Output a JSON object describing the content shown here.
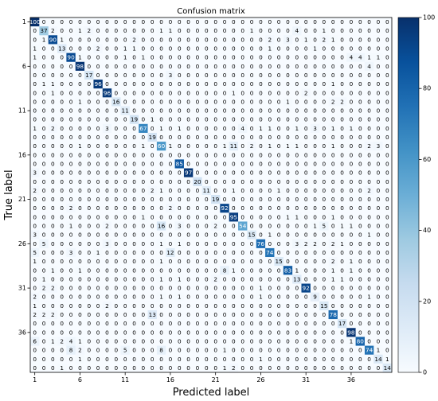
{
  "chart_data": {
    "type": "heatmap",
    "title": "Confusion matrix",
    "xlabel": "Predicted label",
    "ylabel": "True label",
    "x_tick_labels": [
      "1",
      "6",
      "11",
      "16",
      "21",
      "26",
      "31",
      "36"
    ],
    "y_tick_labels": [
      "1",
      "6",
      "11",
      "16",
      "21",
      "26",
      "31",
      "36"
    ],
    "colorbar": {
      "ticks": [
        "0",
        "20",
        "40",
        "60",
        "80",
        "100"
      ],
      "min": 0,
      "max": 100
    },
    "colormap": [
      "#f7fbff",
      "#deebf7",
      "#c6dbef",
      "#9ecae1",
      "#6baed6",
      "#4292c6",
      "#2171b5",
      "#08519c",
      "#08306b"
    ],
    "matrix": [
      "100 0 0 0 0 0 0 0 0 0 0 0 0 0 0 0 0 0 0 0 0 0 0 0 0 0 0 0 0 0 0 0 0 0 0 0 0 0 0 0",
      "0 37 2 0 0 1 2 0 0 0 0 0 0 0 1 1 0 0 0 0 0 0 0 0 1 0 0 0 0 4 0 0 1 0 0 0 0 0 0 0",
      "0 1 90 1 0 0 0 0 0 0 0 2 0 0 0 0 0 0 0 0 0 0 0 0 0 0 2 0 3 0 1 0 2 1 0 0 0 0 0 0",
      "1 0 0 13 0 0 0 2 0 0 1 1 0 0 0 0 0 0 0 0 0 0 0 0 0 0 1 0 0 0 0 1 0 0 0 0 0 0 0 0",
      "1 0 0 0 90 1 0 0 0 0 1 0 1 0 0 0 0 0 0 0 0 0 0 0 0 0 0 0 0 0 0 0 0 0 0 4 4 1 1 0",
      "0 0 0 0 0 98 0 0 0 0 0 0 0 0 0 0 0 0 0 0 0 0 0 0 0 0 0 0 0 0 0 0 0 0 0 0 0 4 0 0",
      "0 0 0 0 0 0 17 0 0 0 0 0 0 0 0 3 0 0 0 0 0 0 0 0 0 0 0 0 0 0 0 0 0 0 0 0 0 0 0 0",
      "0 1 1 0 0 0 0 96 0 0 0 0 0 0 0 0 0 0 0 0 0 0 0 0 0 0 0 0 0 0 0 0 0 1 0 0 0 0 0 0",
      "0 0 1 0 0 0 0 0 96 0 0 0 0 0 0 0 0 0 0 0 0 0 1 0 0 0 0 0 0 0 2 0 0 0 0 0 0 0 0 0",
      "0 0 0 0 0 1 0 0 0 16 0 0 0 0 0 0 0 0 0 0 0 0 0 0 0 0 0 0 1 0 0 0 0 2 2 0 0 0 0 0",
      "0 0 0 0 0 0 0 0 0 0 11 0 0 0 0 0 0 0 0 0 0 0 0 0 0 0 0 0 0 0 0 0 0 0 0 0 0 0 0 0",
      "0 0 0 0 0 0 0 0 0 0 0 19 0 1 0 0 0 0 0 0 0 0 0 0 0 0 0 0 0 0 0 0 0 0 0 0 0 0 0 0",
      "1 0 2 0 0 0 0 0 3 0 0 0 67 0 1 0 1 0 0 0 0 0 0 4 0 1 1 0 0 1 0 3 0 1 0 1 0 0 0 0",
      "0 0 0 0 0 0 0 0 0 0 0 0 0 19 0 0 0 0 0 0 0 0 0 0 0 0 0 0 0 0 0 0 0 0 0 0 0 0 0 0",
      "0 0 0 0 0 1 0 0 0 0 0 0 1 0 60 1 0 0 0 0 0 1 11 0 2 0 1 0 1 1 0 0 0 1 0 0 0 2 3 0",
      "0 0 0 0 0 0 0 0 0 0 0 0 0 0 0 0 0 0 0 0 0 0 0 0 0 0 0 0 0 0 0 0 0 0 0 0 0 0 0 0",
      "0 0 0 0 0 0 0 0 0 0 0 0 0 0 0 0 85 0 0 0 0 0 0 0 0 0 0 0 0 0 0 0 0 0 0 0 0 0 0 0",
      "3 0 0 0 0 0 0 0 0 0 0 0 0 0 0 0 0 97 0 0 0 0 0 0 0 0 0 0 0 0 0 0 0 0 0 0 0 0 0 0",
      "0 0 0 0 0 0 0 0 0 0 0 0 0 0 0 0 0 0 20 0 0 0 0 0 0 0 0 0 0 0 0 0 0 0 0 0 0 0 0 0",
      "2 0 0 0 0 0 0 0 0 0 0 0 0 2 1 0 0 0 0 11 0 0 1 0 0 0 0 1 0 0 0 0 0 0 0 0 0 2 0 0",
      "0 0 0 0 0 0 0 0 0 0 0 0 0 0 0 0 0 0 0 0 19 0 0 0 0 0 0 0 0 0 0 0 0 0 0 0 0 0 0 0",
      "0 0 0 0 2 0 0 0 0 0 0 0 0 0 0 2 0 0 0 0 0 92 0 0 0 0 0 0 0 0 0 0 0 0 0 0 0 0 0 0",
      "0 0 0 0 0 0 0 0 0 0 0 0 1 0 0 0 0 0 0 0 0 0 95 0 0 0 0 0 1 1 0 0 0 1 0 0 0 0 0 0",
      "0 0 0 0 1 0 0 0 2 0 0 0 0 0 16 0 3 0 0 0 2 0 0 54 0 0 0 0 0 0 0 1 5 0 1 1 0 0 0 0",
      "3 0 0 0 0 0 0 0 0 0 0 0 0 0 0 0 0 0 0 0 0 0 0 0 15 0 1 0 0 0 0 0 0 0 0 0 0 1 0 0",
      "0 5 0 0 0 0 0 0 3 0 0 0 0 0 1 0 1 0 0 0 0 0 0 0 0 76 0 0 0 3 2 2 0 2 1 0 0 0 0 0",
      "5 0 0 0 3 0 0 1 0 0 0 0 0 0 0 12 0 0 0 0 0 0 0 0 0 0 74 0 0 0 0 0 0 0 0 0 0 0 0 0",
      "1 0 0 0 0 0 0 0 0 0 0 0 0 0 1 0 0 0 0 0 0 0 0 0 0 0 0 15 0 0 0 0 0 2 0 1 0 0 0 0",
      "0 0 1 0 0 1 0 0 0 0 0 0 0 0 0 0 0 0 0 0 0 8 1 0 0 0 0 0 83 1 0 0 0 1 0 1 0 0 0 0",
      "0 1 0 0 0 0 0 0 0 0 0 0 0 0 1 0 1 0 0 0 2 0 0 0 0 0 0 0 0 13 0 0 0 1 1 0 0 0 0 0",
      "0 2 2 0 0 0 0 0 0 0 0 0 0 0 0 0 0 0 0 0 0 0 0 0 0 1 0 0 0 0 92 0 0 0 0 0 0 0 0 0",
      "2 0 0 0 0 0 0 0 0 0 0 0 0 0 1 0 1 0 0 0 0 0 0 0 0 1 0 0 0 0 0 9 0 0 0 0 0 1 0 0",
      "1 0 0 0 0 0 0 0 2 0 0 0 0 0 0 0 0 0 0 0 0 0 0 0 0 0 0 0 0 0 0 0 15 0 0 0 0 0 0 0",
      "2 2 2 0 0 0 0 0 0 0 0 0 0 13 0 0 0 0 0 0 0 0 0 0 0 0 0 0 0 0 0 0 0 78 0 0 0 0 0 0",
      "0 0 0 0 0 0 0 0 0 0 0 0 0 0 0 0 0 0 0 0 0 0 0 0 0 0 0 0 0 0 0 0 0 0 17 0 0 0 0 0",
      "0 0 0 0 0 0 0 0 0 0 0 0 0 0 0 0 0 0 0 0 0 0 0 0 0 0 0 0 0 0 0 0 0 0 0 98 0 0 0 0",
      "6 0 1 2 4 1 0 0 0 0 0 0 0 0 0 0 0 0 0 0 0 0 0 0 0 0 0 0 0 0 0 0 0 0 0 1 80 0 0 0",
      "0 0 0 0 8 2 0 0 0 0 5 0 0 0 8 0 0 0 0 0 0 1 0 0 0 0 0 0 0 0 0 0 0 0 0 0 0 74 1 0",
      "0 0 0 0 0 1 0 0 0 0 0 0 0 0 0 0 0 0 0 0 0 0 0 0 0 1 0 0 0 0 0 0 0 0 0 0 0 0 14 1",
      "0 0 0 1 0 0 0 0 0 0 0 0 0 0 0 0 0 0 0 0 0 1 2 0 0 0 0 0 0 0 0 0 0 0 0 0 0 0 0 14"
    ]
  }
}
